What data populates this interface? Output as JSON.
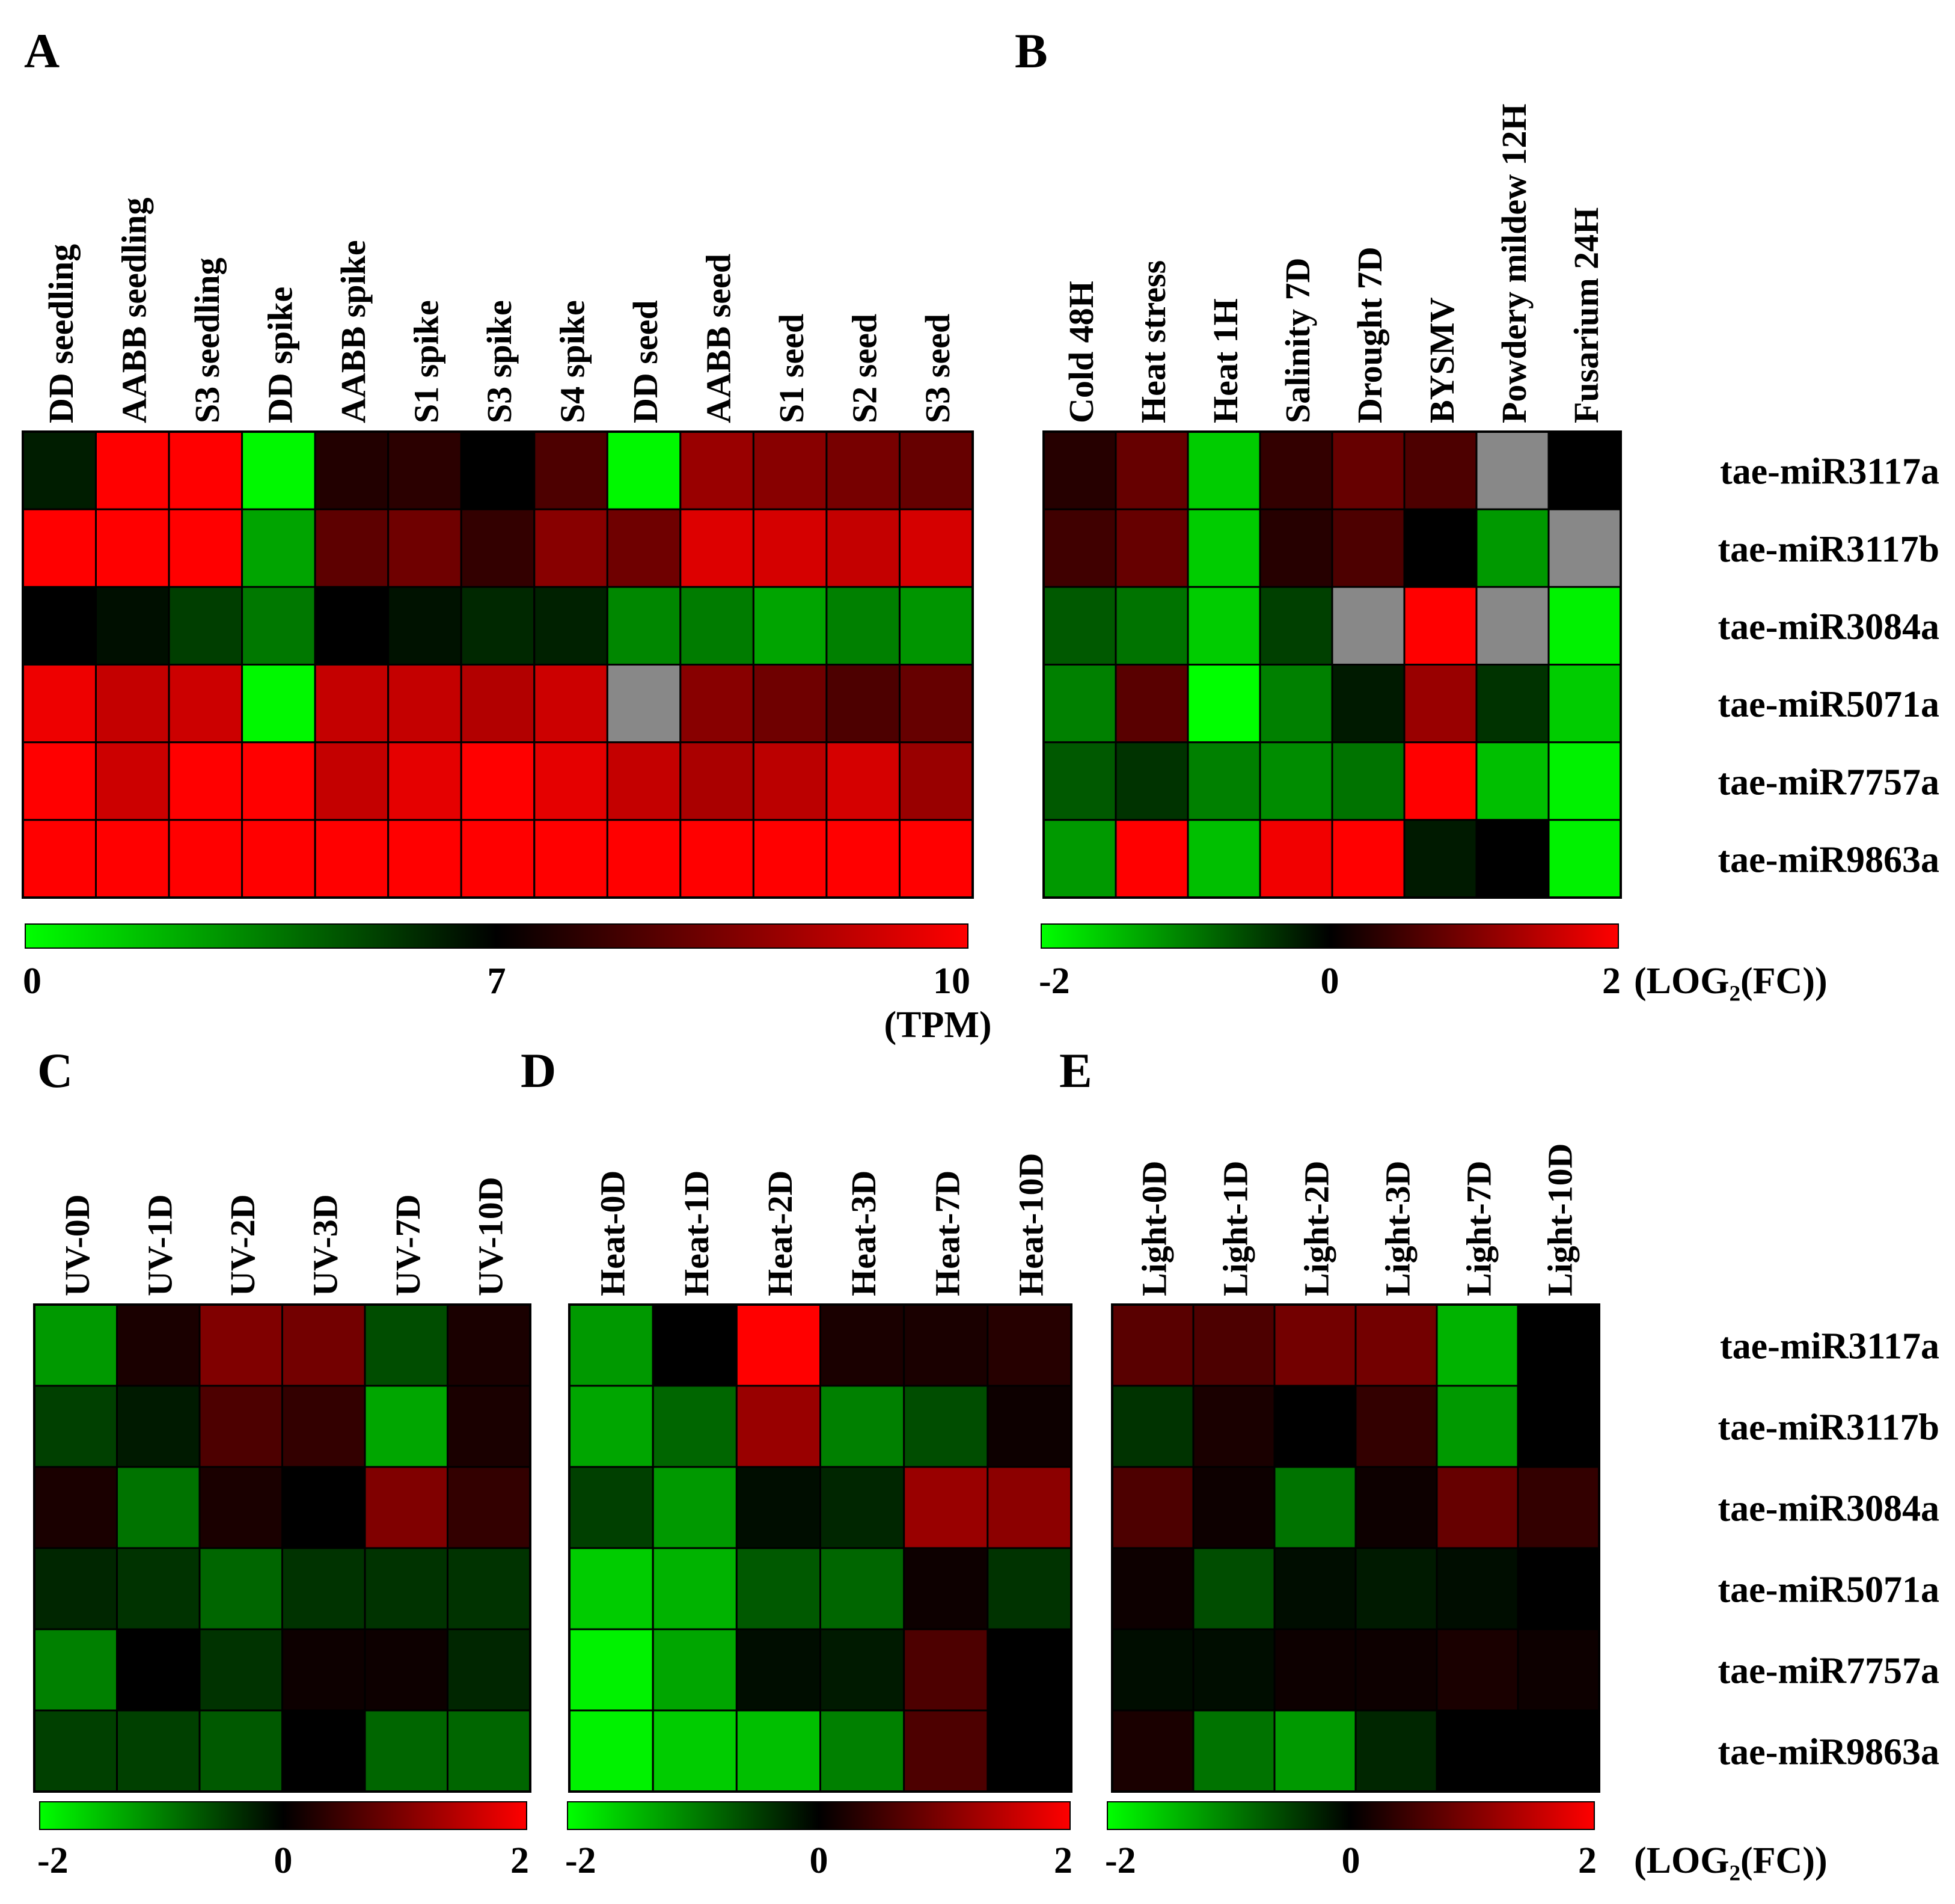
{
  "figure": {
    "row_labels": [
      "tae-miR3117a",
      "tae-miR3117b",
      "tae-miR3084a",
      "tae-miR5071a",
      "tae-miR7757a",
      "tae-miR9863a"
    ],
    "colors": {
      "low": "#00ff00",
      "mid": "#000000",
      "high": "#ff0000",
      "missing": "#888888",
      "grid": "#000000"
    }
  },
  "chart_data": [
    {
      "id": "A",
      "type": "heatmap",
      "title": "A",
      "x_labels": [
        "DD seedling",
        "AABB seedling",
        "S3 seedling",
        "DD spike",
        "AABB spike",
        "S1 spike",
        "S3 spike",
        "S4 spike",
        "DD seed",
        "AABB seed",
        "S1 seed",
        "S2 seed",
        "S3 seed"
      ],
      "y_labels": [
        "tae-miR3117a",
        "tae-miR3117b",
        "tae-miR3084a",
        "tae-miR5071a",
        "tae-miR7757a",
        "tae-miR9863a"
      ],
      "values": [
        [
          6.2,
          10.0,
          10.0,
          0.2,
          7.4,
          7.5,
          7.0,
          7.9,
          0.2,
          8.8,
          8.6,
          8.4,
          8.2
        ],
        [
          10.0,
          10.0,
          10.0,
          2.5,
          8.1,
          8.3,
          7.6,
          8.6,
          8.3,
          9.6,
          9.5,
          9.3,
          9.5
        ],
        [
          7.0,
          6.6,
          5.3,
          3.7,
          7.0,
          6.5,
          5.9,
          6.1,
          3.3,
          3.6,
          2.5,
          3.5,
          2.9
        ],
        [
          9.8,
          9.3,
          9.4,
          0.2,
          9.3,
          9.3,
          9.1,
          9.4,
          null,
          8.6,
          8.3,
          7.9,
          8.2
        ],
        [
          10.0,
          9.4,
          10.0,
          10.0,
          9.3,
          9.7,
          10.0,
          9.7,
          9.3,
          9.0,
          9.2,
          9.5,
          8.8
        ],
        [
          10.0,
          10.0,
          10.0,
          10.0,
          10.0,
          10.0,
          10.0,
          10.0,
          10.0,
          10.0,
          10.0,
          10.0,
          10.0
        ]
      ],
      "scale": {
        "min": 0,
        "mid": 7,
        "max": 10,
        "ticks": [
          "0",
          "7",
          "10"
        ],
        "unit": "(TPM)"
      }
    },
    {
      "id": "B",
      "type": "heatmap",
      "title": "B",
      "x_labels": [
        "Cold 48H",
        "Heat stress",
        "Heat 1H",
        "Salinity 7D",
        "Drought 7D",
        "BYSMV",
        "Powdery mildew 12H",
        "Fusarium 24H"
      ],
      "y_labels": [
        "tae-miR3117a",
        "tae-miR3117b",
        "tae-miR3084a",
        "tae-miR5071a",
        "tae-miR7757a",
        "tae-miR9863a"
      ],
      "values": [
        [
          0.3,
          0.8,
          -1.6,
          0.4,
          0.8,
          0.6,
          null,
          0.0
        ],
        [
          0.5,
          0.8,
          -1.6,
          0.3,
          0.6,
          0.0,
          -1.2,
          null
        ],
        [
          -0.7,
          -0.9,
          -1.6,
          -0.5,
          null,
          2.0,
          null,
          -1.9
        ],
        [
          -1.0,
          0.7,
          -2.0,
          -1.0,
          -0.2,
          1.2,
          -0.4,
          -1.6
        ],
        [
          -0.7,
          -0.4,
          -1.0,
          -1.1,
          -0.9,
          2.0,
          -1.5,
          -1.9
        ],
        [
          -1.2,
          2.0,
          -1.5,
          1.9,
          2.0,
          -0.2,
          0.0,
          -1.9
        ]
      ],
      "scale": {
        "min": -2,
        "mid": 0,
        "max": 2,
        "ticks": [
          "-2",
          "0",
          "2"
        ],
        "unit": "(LOG₂(FC))"
      }
    },
    {
      "id": "C",
      "type": "heatmap",
      "title": "C",
      "x_labels": [
        "UV-0D",
        "UV-1D",
        "UV-2D",
        "UV-3D",
        "UV-7D",
        "UV-10D"
      ],
      "y_labels": [
        "tae-miR3117a",
        "tae-miR3117b",
        "tae-miR3084a",
        "tae-miR5071a",
        "tae-miR7757a",
        "tae-miR9863a"
      ],
      "values": [
        [
          -1.2,
          0.2,
          1.0,
          0.9,
          -0.6,
          0.2
        ],
        [
          -0.5,
          -0.2,
          0.6,
          0.4,
          -1.3,
          0.2
        ],
        [
          0.2,
          -0.9,
          0.2,
          0.0,
          1.0,
          0.4
        ],
        [
          -0.3,
          -0.4,
          -0.8,
          -0.4,
          -0.4,
          -0.4
        ],
        [
          -1.0,
          0.0,
          -0.4,
          0.1,
          0.1,
          -0.3
        ],
        [
          -0.5,
          -0.5,
          -0.7,
          0.0,
          -0.8,
          -0.8
        ]
      ],
      "scale": {
        "min": -2,
        "mid": 0,
        "max": 2,
        "ticks": [
          "-2",
          "0",
          "2"
        ]
      }
    },
    {
      "id": "D",
      "type": "heatmap",
      "title": "D",
      "x_labels": [
        "Heat-0D",
        "Heat-1D",
        "Heat-2D",
        "Heat-3D",
        "Heat-7D",
        "Heat-10D"
      ],
      "y_labels": [
        "tae-miR3117a",
        "tae-miR3117b",
        "tae-miR3084a",
        "tae-miR5071a",
        "tae-miR7757a",
        "tae-miR9863a"
      ],
      "values": [
        [
          -1.2,
          0.0,
          2.0,
          0.2,
          0.2,
          0.3
        ],
        [
          -1.3,
          -0.8,
          1.2,
          -1.0,
          -0.6,
          0.1
        ],
        [
          -0.5,
          -1.2,
          -0.1,
          -0.3,
          1.2,
          1.1
        ],
        [
          -1.6,
          -1.4,
          -0.7,
          -0.8,
          0.1,
          -0.4
        ],
        [
          -1.9,
          -1.3,
          -0.1,
          -0.2,
          0.6,
          0.0
        ],
        [
          -1.9,
          -1.6,
          -1.5,
          -1.0,
          0.6,
          0.0
        ]
      ],
      "scale": {
        "min": -2,
        "mid": 0,
        "max": 2,
        "ticks": [
          "-2",
          "0",
          "2"
        ]
      }
    },
    {
      "id": "E",
      "type": "heatmap",
      "title": "E",
      "x_labels": [
        "Light-0D",
        "Light-1D",
        "Light-2D",
        "Light-3D",
        "Light-7D",
        "Light-10D"
      ],
      "y_labels": [
        "tae-miR3117a",
        "tae-miR3117b",
        "tae-miR3084a",
        "tae-miR5071a",
        "tae-miR7757a",
        "tae-miR9863a"
      ],
      "values": [
        [
          0.7,
          0.6,
          0.9,
          0.9,
          -1.4,
          0.0
        ],
        [
          -0.4,
          0.2,
          0.0,
          0.4,
          -1.2,
          0.0
        ],
        [
          0.6,
          0.1,
          -0.9,
          0.1,
          0.8,
          0.4
        ],
        [
          0.1,
          -0.6,
          -0.1,
          -0.2,
          -0.1,
          0.0
        ],
        [
          -0.1,
          -0.1,
          0.1,
          0.1,
          0.2,
          0.1
        ],
        [
          0.2,
          -0.9,
          -1.2,
          -0.3,
          0.0,
          0.0
        ]
      ],
      "scale": {
        "min": -2,
        "mid": 0,
        "max": 2,
        "ticks": [
          "-2",
          "0",
          "2"
        ],
        "unit": "(LOG₂(FC))"
      }
    }
  ]
}
